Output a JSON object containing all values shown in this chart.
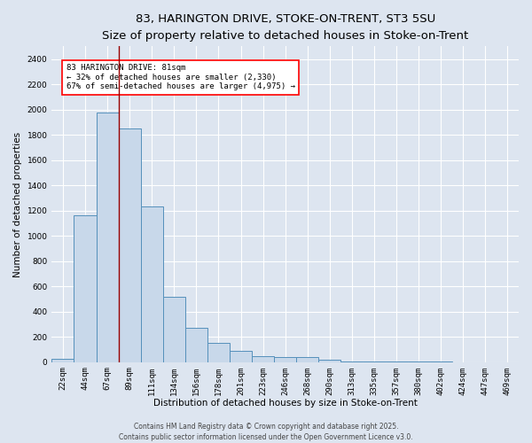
{
  "title_line1": "83, HARINGTON DRIVE, STOKE-ON-TRENT, ST3 5SU",
  "title_line2": "Size of property relative to detached houses in Stoke-on-Trent",
  "xlabel": "Distribution of detached houses by size in Stoke-on-Trent",
  "ylabel": "Number of detached properties",
  "categories": [
    "22sqm",
    "44sqm",
    "67sqm",
    "89sqm",
    "111sqm",
    "134sqm",
    "156sqm",
    "178sqm",
    "201sqm",
    "223sqm",
    "246sqm",
    "268sqm",
    "290sqm",
    "313sqm",
    "335sqm",
    "357sqm",
    "380sqm",
    "402sqm",
    "424sqm",
    "447sqm",
    "469sqm"
  ],
  "values": [
    25,
    1160,
    1975,
    1850,
    1230,
    520,
    275,
    155,
    90,
    45,
    40,
    40,
    20,
    8,
    5,
    3,
    3,
    2,
    1,
    1,
    1
  ],
  "bar_color": "#c8d8ea",
  "bar_edge_color": "#5590bb",
  "bar_linewidth": 0.7,
  "redline_x": 2.5,
  "annotation_text": "83 HARINGTON DRIVE: 81sqm\n← 32% of detached houses are smaller (2,330)\n67% of semi-detached houses are larger (4,975) →",
  "annotation_box_color": "white",
  "annotation_box_edge_color": "red",
  "ylim": [
    0,
    2500
  ],
  "yticks": [
    0,
    200,
    400,
    600,
    800,
    1000,
    1200,
    1400,
    1600,
    1800,
    2000,
    2200,
    2400
  ],
  "background_color": "#dde5f0",
  "plot_bg_color": "#dde5f0",
  "grid_color": "white",
  "footer_line1": "Contains HM Land Registry data © Crown copyright and database right 2025.",
  "footer_line2": "Contains public sector information licensed under the Open Government Licence v3.0.",
  "title_fontsize": 9.5,
  "subtitle_fontsize": 8,
  "tick_fontsize": 6.5,
  "ylabel_fontsize": 7.5,
  "xlabel_fontsize": 7.5,
  "annotation_fontsize": 6.5,
  "footer_fontsize": 5.5
}
